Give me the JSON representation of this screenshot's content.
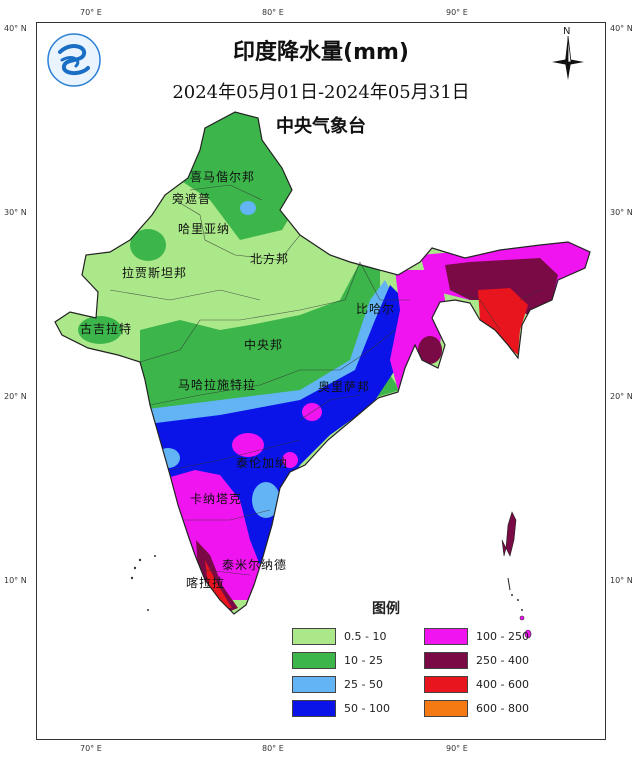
{
  "title": "印度降水量(mm)",
  "date_range": "2024年05月01日-2024年05月31日",
  "agency": "中央气象台",
  "north_label": "N",
  "axis": {
    "top": [
      "70° E",
      "80° E",
      "90° E"
    ],
    "bottom": [
      "70° E",
      "80° E",
      "90° E"
    ],
    "left": [
      "40° N",
      "30° N",
      "20° N",
      "10° N"
    ],
    "right": [
      "40° N",
      "30° N",
      "20° N",
      "10° N"
    ]
  },
  "regions": [
    "喜马偕尔邦",
    "旁遮普",
    "哈里亚纳",
    "北方邦",
    "拉贾斯坦邦",
    "古吉拉特",
    "中央邦",
    "比哈尔",
    "马哈拉施特拉",
    "奥里萨邦",
    "泰伦加纳",
    "卡纳塔克",
    "泰米尔纳德",
    "喀拉拉"
  ],
  "legend": {
    "title": "图例",
    "items": [
      {
        "label": "0.5 - 10",
        "color": "#aae88a"
      },
      {
        "label": "10 - 25",
        "color": "#3cb54a"
      },
      {
        "label": "25 - 50",
        "color": "#62b4f4"
      },
      {
        "label": "50 - 100",
        "color": "#0a14e8"
      },
      {
        "label": "100 - 250",
        "color": "#f014f0"
      },
      {
        "label": "250 - 400",
        "color": "#7a0a46"
      },
      {
        "label": "400 - 600",
        "color": "#e8141e"
      },
      {
        "label": "600 - 800",
        "color": "#f57a14"
      }
    ]
  },
  "icons": {
    "logo": "cma-logo-icon",
    "north_arrow": "north-arrow-icon"
  }
}
